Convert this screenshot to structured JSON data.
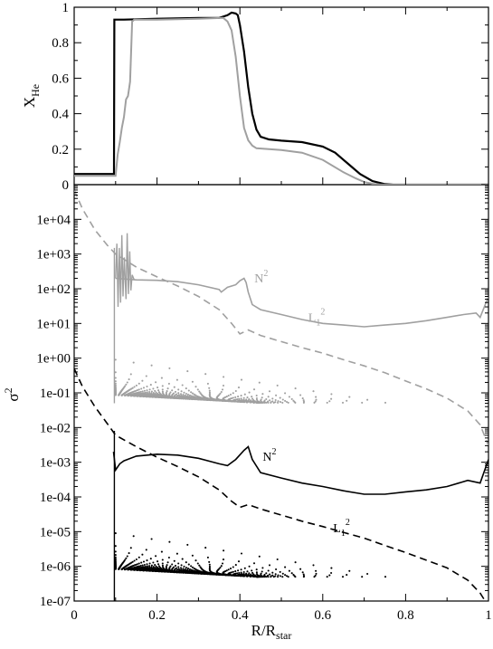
{
  "colors": {
    "black": "#000000",
    "gray": "#a0a0a0"
  },
  "chart_data": [
    {
      "type": "line",
      "ylabel": "X",
      "ylabel_sub": "He",
      "xlim": [
        0,
        1
      ],
      "ylim": [
        0,
        1
      ],
      "yticks": [
        "0",
        "0.2",
        "0.4",
        "0.6",
        "0.8",
        "1"
      ],
      "grid": false,
      "series": [
        {
          "color": "#000000",
          "x": [
            0,
            0.096,
            0.097,
            0.12,
            0.2,
            0.3,
            0.35,
            0.37,
            0.38,
            0.39,
            0.395,
            0.4,
            0.41,
            0.42,
            0.43,
            0.44,
            0.45,
            0.47,
            0.5,
            0.55,
            0.6,
            0.63,
            0.66,
            0.69,
            0.72,
            0.75,
            0.77,
            0.8,
            1
          ],
          "y": [
            0.06,
            0.06,
            0.93,
            0.93,
            0.935,
            0.94,
            0.94,
            0.955,
            0.97,
            0.965,
            0.955,
            0.9,
            0.75,
            0.55,
            0.4,
            0.31,
            0.27,
            0.255,
            0.248,
            0.24,
            0.215,
            0.18,
            0.12,
            0.06,
            0.02,
            0.003,
            0,
            0,
            0
          ]
        },
        {
          "color": "#a0a0a0",
          "x": [
            0,
            0.1,
            0.105,
            0.11,
            0.115,
            0.12,
            0.125,
            0.13,
            0.135,
            0.14,
            0.145,
            0.15,
            0.2,
            0.3,
            0.36,
            0.37,
            0.38,
            0.39,
            0.4,
            0.41,
            0.42,
            0.43,
            0.44,
            0.47,
            0.5,
            0.55,
            0.6,
            0.65,
            0.68,
            0.7,
            0.72,
            0.74,
            0.76,
            0.8,
            1
          ],
          "y": [
            0.05,
            0.05,
            0.17,
            0.24,
            0.32,
            0.38,
            0.48,
            0.5,
            0.58,
            0.92,
            0.93,
            0.93,
            0.93,
            0.935,
            0.94,
            0.92,
            0.87,
            0.72,
            0.5,
            0.32,
            0.25,
            0.22,
            0.205,
            0.2,
            0.195,
            0.18,
            0.14,
            0.07,
            0.035,
            0.015,
            0.005,
            0,
            0,
            0,
            0
          ]
        }
      ]
    },
    {
      "type": "line",
      "ylabel": "σ",
      "ylabel_sup": "2",
      "xlabel": "R/R",
      "xlabel_sub": "star",
      "xlim": [
        0,
        1
      ],
      "yscale": "log",
      "ylim_exp": [
        -7,
        5
      ],
      "yticks": [
        "1e-07",
        "1e-06",
        "1e-05",
        "1e-04",
        "1e-03",
        "1e-02",
        "1e-01",
        "1e+00",
        "1e+01",
        "1e+02",
        "1e+03",
        "1e+04"
      ],
      "xticks": [
        "0",
        "0.2",
        "0.4",
        "0.6",
        "0.8",
        "1"
      ],
      "grid": false,
      "annotations": [
        {
          "text": "N",
          "sup": "2",
          "x": 0.435,
          "y": 150,
          "color": "#a0a0a0"
        },
        {
          "text": "L",
          "sub": "1",
          "sup": "2",
          "x": 0.565,
          "y": 11,
          "color": "#a0a0a0"
        },
        {
          "text": "N",
          "sup": "2",
          "x": 0.455,
          "y": 0.0011,
          "color": "#000000"
        },
        {
          "text": "L",
          "sub": "1",
          "sup": "2",
          "x": 0.625,
          "y": 9.5e-06,
          "color": "#000000"
        }
      ],
      "series": [
        {
          "color": "#a0a0a0",
          "style": "solid",
          "x": [
            0.1,
            0.15,
            0.2,
            0.25,
            0.3,
            0.35,
            0.355,
            0.37,
            0.39,
            0.4,
            0.41,
            0.415,
            0.42,
            0.43,
            0.45,
            0.5,
            0.55,
            0.6,
            0.65,
            0.7,
            0.75,
            0.8,
            0.85,
            0.9,
            0.94,
            0.97,
            0.98,
            1.0
          ],
          "y": [
            200,
            180,
            175,
            160,
            130,
            95,
            80,
            110,
            130,
            170,
            200,
            150,
            80,
            35,
            25,
            18,
            13,
            10,
            9,
            8,
            9,
            10,
            12,
            15,
            18,
            20,
            15,
            60
          ]
        },
        {
          "color": "#a0a0a0",
          "style": "dashed",
          "x": [
            0,
            0.02,
            0.05,
            0.08,
            0.1,
            0.15,
            0.2,
            0.25,
            0.3,
            0.35,
            0.38,
            0.4,
            0.42,
            0.45,
            0.5,
            0.55,
            0.6,
            0.65,
            0.7,
            0.75,
            0.8,
            0.85,
            0.9,
            0.95,
            0.98,
            1.0
          ],
          "y": [
            70000,
            20000,
            5000,
            1800,
            1000,
            420,
            220,
            120,
            60,
            25,
            10,
            5,
            6.5,
            4.5,
            3,
            2,
            1.4,
            0.9,
            0.6,
            0.38,
            0.22,
            0.13,
            0.07,
            0.03,
            0.012,
            0.003
          ]
        },
        {
          "color": "#000000",
          "style": "solid",
          "x": [
            0.095,
            0.1,
            0.11,
            0.12,
            0.15,
            0.2,
            0.25,
            0.3,
            0.35,
            0.37,
            0.39,
            0.41,
            0.42,
            0.43,
            0.45,
            0.5,
            0.55,
            0.6,
            0.65,
            0.7,
            0.75,
            0.8,
            0.85,
            0.9,
            0.95,
            0.98,
            1.0
          ],
          "y": [
            0.002,
            0.0006,
            0.0009,
            0.0011,
            0.0015,
            0.0017,
            0.0016,
            0.0013,
            0.0009,
            0.0008,
            0.0012,
            0.0022,
            0.0028,
            0.0012,
            0.0005,
            0.00035,
            0.00025,
            0.0002,
            0.00015,
            0.00012,
            0.00012,
            0.00014,
            0.00016,
            0.0002,
            0.0003,
            0.00025,
            0.0012
          ]
        },
        {
          "color": "#000000",
          "style": "dashed",
          "x": [
            0,
            0.02,
            0.05,
            0.08,
            0.1,
            0.15,
            0.2,
            0.25,
            0.3,
            0.35,
            0.38,
            0.4,
            0.42,
            0.45,
            0.5,
            0.55,
            0.6,
            0.65,
            0.7,
            0.75,
            0.8,
            0.85,
            0.9,
            0.95,
            0.98,
            1.0
          ],
          "y": [
            0.5,
            0.15,
            0.04,
            0.013,
            0.006,
            0.0028,
            0.0014,
            0.00075,
            0.00038,
            0.00016,
            7.5e-05,
            5e-05,
            6e-05,
            4.5e-05,
            3e-05,
            2e-05,
            1.4e-05,
            9.5e-06,
            6.5e-06,
            4e-06,
            2.5e-06,
            1.5e-06,
            9e-07,
            4e-07,
            1.7e-07,
            7e-08
          ]
        }
      ],
      "mode_families": [
        {
          "color": "#a0a0a0",
          "base": 0.052,
          "top": 0.9,
          "count": 32,
          "x0": 0.1,
          "xmax": 0.44
        },
        {
          "color": "#000000",
          "base": 5e-07,
          "top": 9e-06,
          "count": 32,
          "x0": 0.1,
          "xmax": 0.44
        }
      ]
    }
  ]
}
